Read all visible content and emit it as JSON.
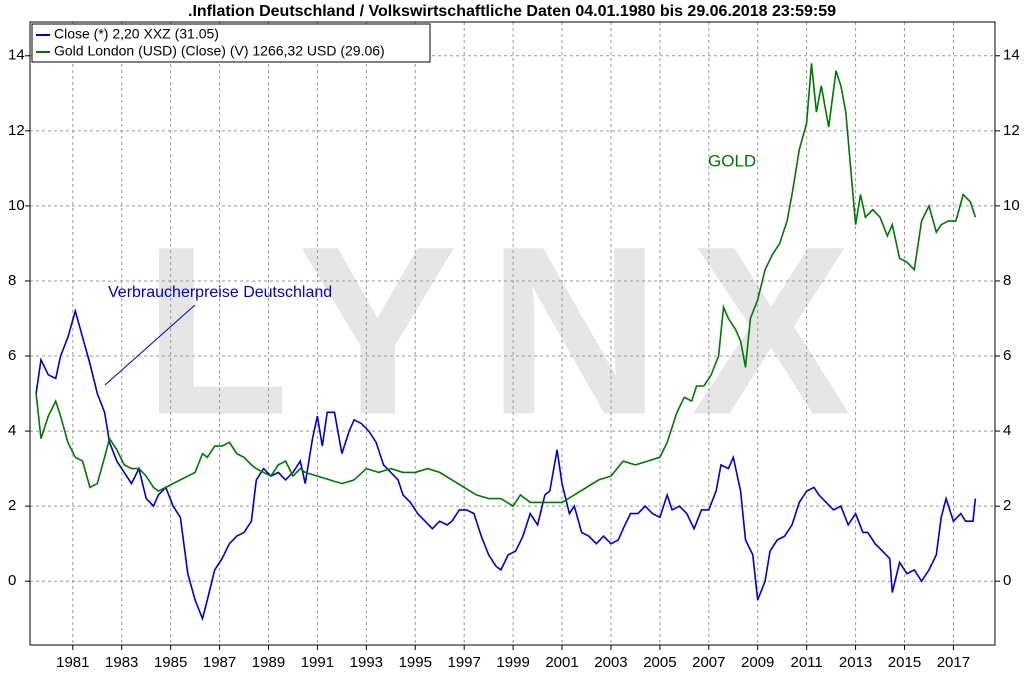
{
  "chart_data": {
    "type": "line",
    "title": ".Inflation Deutschland / Volkswirtschaftliche Daten 04.01.1980 bis 29.06.2018 23:59:59",
    "watermark": "LYNX",
    "annotations": [
      "Verbraucherpreise Deutschland",
      "GOLD"
    ],
    "xlim": [
      1979.75,
      2019.2
    ],
    "ylim": [
      -1.7,
      14.9
    ],
    "yticks": [
      0,
      2,
      4,
      6,
      8,
      10,
      12,
      14
    ],
    "xticks": [
      {
        "value": 1981.5,
        "label": "1981"
      },
      {
        "value": 1983.5,
        "label": "1983"
      },
      {
        "value": 1985.5,
        "label": "1985"
      },
      {
        "value": 1987.5,
        "label": "1987"
      },
      {
        "value": 1989.5,
        "label": "1989"
      },
      {
        "value": 1991.5,
        "label": "1991"
      },
      {
        "value": 1993.5,
        "label": "1993"
      },
      {
        "value": 1995.5,
        "label": "1995"
      },
      {
        "value": 1997.5,
        "label": "1997"
      },
      {
        "value": 1999.5,
        "label": "1999"
      },
      {
        "value": 2001.5,
        "label": "2001"
      },
      {
        "value": 2003.5,
        "label": "2003"
      },
      {
        "value": 2005.5,
        "label": "2005"
      },
      {
        "value": 2007.5,
        "label": "2007"
      },
      {
        "value": 2009.5,
        "label": "2009"
      },
      {
        "value": 2011.5,
        "label": "2011"
      },
      {
        "value": 2013.5,
        "label": "2013"
      },
      {
        "value": 2015.5,
        "label": "2015"
      },
      {
        "value": 2017.5,
        "label": "2017"
      }
    ],
    "grid": true,
    "series": [
      {
        "name": "Close (*) 2,20 XXZ (31.05)",
        "color": "#0000c8",
        "x": [
          1980.0,
          1980.2,
          1980.5,
          1980.8,
          1981.0,
          1981.3,
          1981.6,
          1981.9,
          1982.2,
          1982.5,
          1982.8,
          1983.0,
          1983.3,
          1983.6,
          1983.9,
          1984.2,
          1984.5,
          1984.8,
          1985.0,
          1985.3,
          1985.6,
          1985.9,
          1986.2,
          1986.5,
          1986.8,
          1987.0,
          1987.3,
          1987.6,
          1987.9,
          1988.2,
          1988.5,
          1988.8,
          1989.0,
          1989.3,
          1989.6,
          1989.9,
          1990.2,
          1990.5,
          1990.8,
          1991.0,
          1991.3,
          1991.5,
          1991.7,
          1991.9,
          1992.2,
          1992.5,
          1992.8,
          1993.0,
          1993.3,
          1993.6,
          1993.9,
          1994.2,
          1994.5,
          1994.8,
          1995.0,
          1995.3,
          1995.6,
          1995.9,
          1996.2,
          1996.5,
          1996.8,
          1997.0,
          1997.3,
          1997.6,
          1997.9,
          1998.2,
          1998.5,
          1998.8,
          1999.0,
          1999.3,
          1999.6,
          1999.9,
          2000.2,
          2000.5,
          2000.8,
          2001.0,
          2001.3,
          2001.5,
          2001.8,
          2002.0,
          2002.3,
          2002.6,
          2002.9,
          2003.2,
          2003.5,
          2003.8,
          2004.0,
          2004.3,
          2004.6,
          2004.9,
          2005.2,
          2005.5,
          2005.8,
          2006.0,
          2006.3,
          2006.6,
          2006.9,
          2007.2,
          2007.5,
          2007.8,
          2008.0,
          2008.3,
          2008.5,
          2008.8,
          2009.0,
          2009.3,
          2009.5,
          2009.8,
          2010.0,
          2010.3,
          2010.6,
          2010.9,
          2011.2,
          2011.5,
          2011.8,
          2012.0,
          2012.3,
          2012.6,
          2012.9,
          2013.2,
          2013.5,
          2013.8,
          2014.0,
          2014.3,
          2014.6,
          2014.9,
          2015.0,
          2015.3,
          2015.6,
          2015.9,
          2016.2,
          2016.5,
          2016.8,
          2017.0,
          2017.2,
          2017.5,
          2017.8,
          2018.0,
          2018.3,
          2018.4
        ],
        "values": [
          5.0,
          5.9,
          5.5,
          5.4,
          6.0,
          6.5,
          7.2,
          6.5,
          5.8,
          5.0,
          4.5,
          3.7,
          3.2,
          2.9,
          2.6,
          3.0,
          2.2,
          2.0,
          2.3,
          2.5,
          2.0,
          1.7,
          0.2,
          -0.5,
          -1.0,
          -0.5,
          0.3,
          0.6,
          1.0,
          1.2,
          1.3,
          1.6,
          2.7,
          3.0,
          2.8,
          2.9,
          2.7,
          2.9,
          3.2,
          2.6,
          3.8,
          4.4,
          3.6,
          4.5,
          4.5,
          3.4,
          4.0,
          4.3,
          4.2,
          4.0,
          3.7,
          3.1,
          2.9,
          2.7,
          2.3,
          2.1,
          1.8,
          1.6,
          1.4,
          1.6,
          1.5,
          1.6,
          1.9,
          1.9,
          1.8,
          1.2,
          0.7,
          0.4,
          0.3,
          0.7,
          0.8,
          1.2,
          1.8,
          1.5,
          2.3,
          2.4,
          3.5,
          2.6,
          1.8,
          2.0,
          1.3,
          1.2,
          1.0,
          1.2,
          1.0,
          1.1,
          1.4,
          1.8,
          1.8,
          2.0,
          1.8,
          1.7,
          2.3,
          1.9,
          2.0,
          1.8,
          1.4,
          1.9,
          1.9,
          2.4,
          3.1,
          3.0,
          3.3,
          2.4,
          1.1,
          0.7,
          -0.5,
          0.0,
          0.8,
          1.1,
          1.2,
          1.5,
          2.1,
          2.4,
          2.5,
          2.3,
          2.1,
          1.9,
          2.0,
          1.5,
          1.8,
          1.3,
          1.3,
          1.0,
          0.8,
          0.6,
          -0.3,
          0.5,
          0.2,
          0.3,
          0.0,
          0.3,
          0.7,
          1.7,
          2.2,
          1.6,
          1.8,
          1.6,
          1.6,
          2.2
        ]
      },
      {
        "name": "Gold London (USD) (Close) (V) 1266,32 USD (29.06)",
        "color": "#007800",
        "x": [
          1980.0,
          1980.2,
          1980.5,
          1980.8,
          1981.0,
          1981.3,
          1981.6,
          1981.9,
          1982.2,
          1982.5,
          1982.8,
          1983.0,
          1983.3,
          1983.6,
          1983.9,
          1984.2,
          1984.5,
          1984.8,
          1985.0,
          1985.3,
          1985.6,
          1985.9,
          1986.2,
          1986.5,
          1986.8,
          1987.0,
          1987.3,
          1987.6,
          1987.9,
          1988.2,
          1988.5,
          1988.8,
          1989.0,
          1989.3,
          1989.6,
          1989.9,
          1990.2,
          1990.5,
          1990.8,
          1991.0,
          1991.5,
          1992.0,
          1992.5,
          1993.0,
          1993.5,
          1994.0,
          1994.5,
          1995.0,
          1995.5,
          1996.0,
          1996.5,
          1997.0,
          1997.5,
          1998.0,
          1998.5,
          1999.0,
          1999.5,
          1999.8,
          2000.2,
          2000.5,
          2000.8,
          2001.2,
          2001.5,
          2002.0,
          2002.5,
          2003.0,
          2003.5,
          2004.0,
          2004.5,
          2005.0,
          2005.5,
          2005.8,
          2006.2,
          2006.5,
          2006.8,
          2007.0,
          2007.3,
          2007.6,
          2007.9,
          2008.1,
          2008.3,
          2008.6,
          2008.8,
          2009.0,
          2009.2,
          2009.5,
          2009.8,
          2010.1,
          2010.4,
          2010.7,
          2010.9,
          2011.2,
          2011.5,
          2011.7,
          2011.9,
          2012.1,
          2012.4,
          2012.7,
          2012.9,
          2013.1,
          2013.3,
          2013.5,
          2013.7,
          2013.9,
          2014.2,
          2014.5,
          2014.8,
          2015.0,
          2015.3,
          2015.6,
          2015.9,
          2016.2,
          2016.5,
          2016.8,
          2017.0,
          2017.3,
          2017.6,
          2017.9,
          2018.2,
          2018.4
        ],
        "values": [
          5.0,
          3.8,
          4.4,
          4.8,
          4.4,
          3.7,
          3.3,
          3.2,
          2.5,
          2.6,
          3.3,
          3.8,
          3.5,
          3.1,
          3.0,
          3.0,
          2.8,
          2.5,
          2.4,
          2.5,
          2.6,
          2.7,
          2.8,
          2.9,
          3.4,
          3.3,
          3.6,
          3.6,
          3.7,
          3.4,
          3.3,
          3.1,
          3.0,
          2.9,
          2.8,
          3.1,
          3.2,
          2.8,
          3.0,
          2.9,
          2.8,
          2.7,
          2.6,
          2.7,
          3.0,
          2.9,
          3.0,
          2.9,
          2.9,
          3.0,
          2.9,
          2.7,
          2.5,
          2.3,
          2.2,
          2.2,
          2.0,
          2.3,
          2.1,
          2.1,
          2.1,
          2.1,
          2.1,
          2.3,
          2.5,
          2.7,
          2.8,
          3.2,
          3.1,
          3.2,
          3.3,
          3.7,
          4.5,
          4.9,
          4.8,
          5.2,
          5.2,
          5.5,
          6.0,
          7.3,
          7.0,
          6.7,
          6.4,
          5.7,
          7.0,
          7.5,
          8.3,
          8.7,
          9.0,
          9.6,
          10.3,
          11.5,
          12.2,
          13.8,
          12.5,
          13.2,
          12.1,
          13.6,
          13.2,
          12.5,
          11.0,
          9.5,
          10.3,
          9.7,
          9.9,
          9.7,
          9.2,
          9.5,
          8.6,
          8.5,
          8.3,
          9.6,
          10.0,
          9.3,
          9.5,
          9.6,
          9.6,
          10.3,
          10.1,
          9.7
        ]
      }
    ]
  }
}
